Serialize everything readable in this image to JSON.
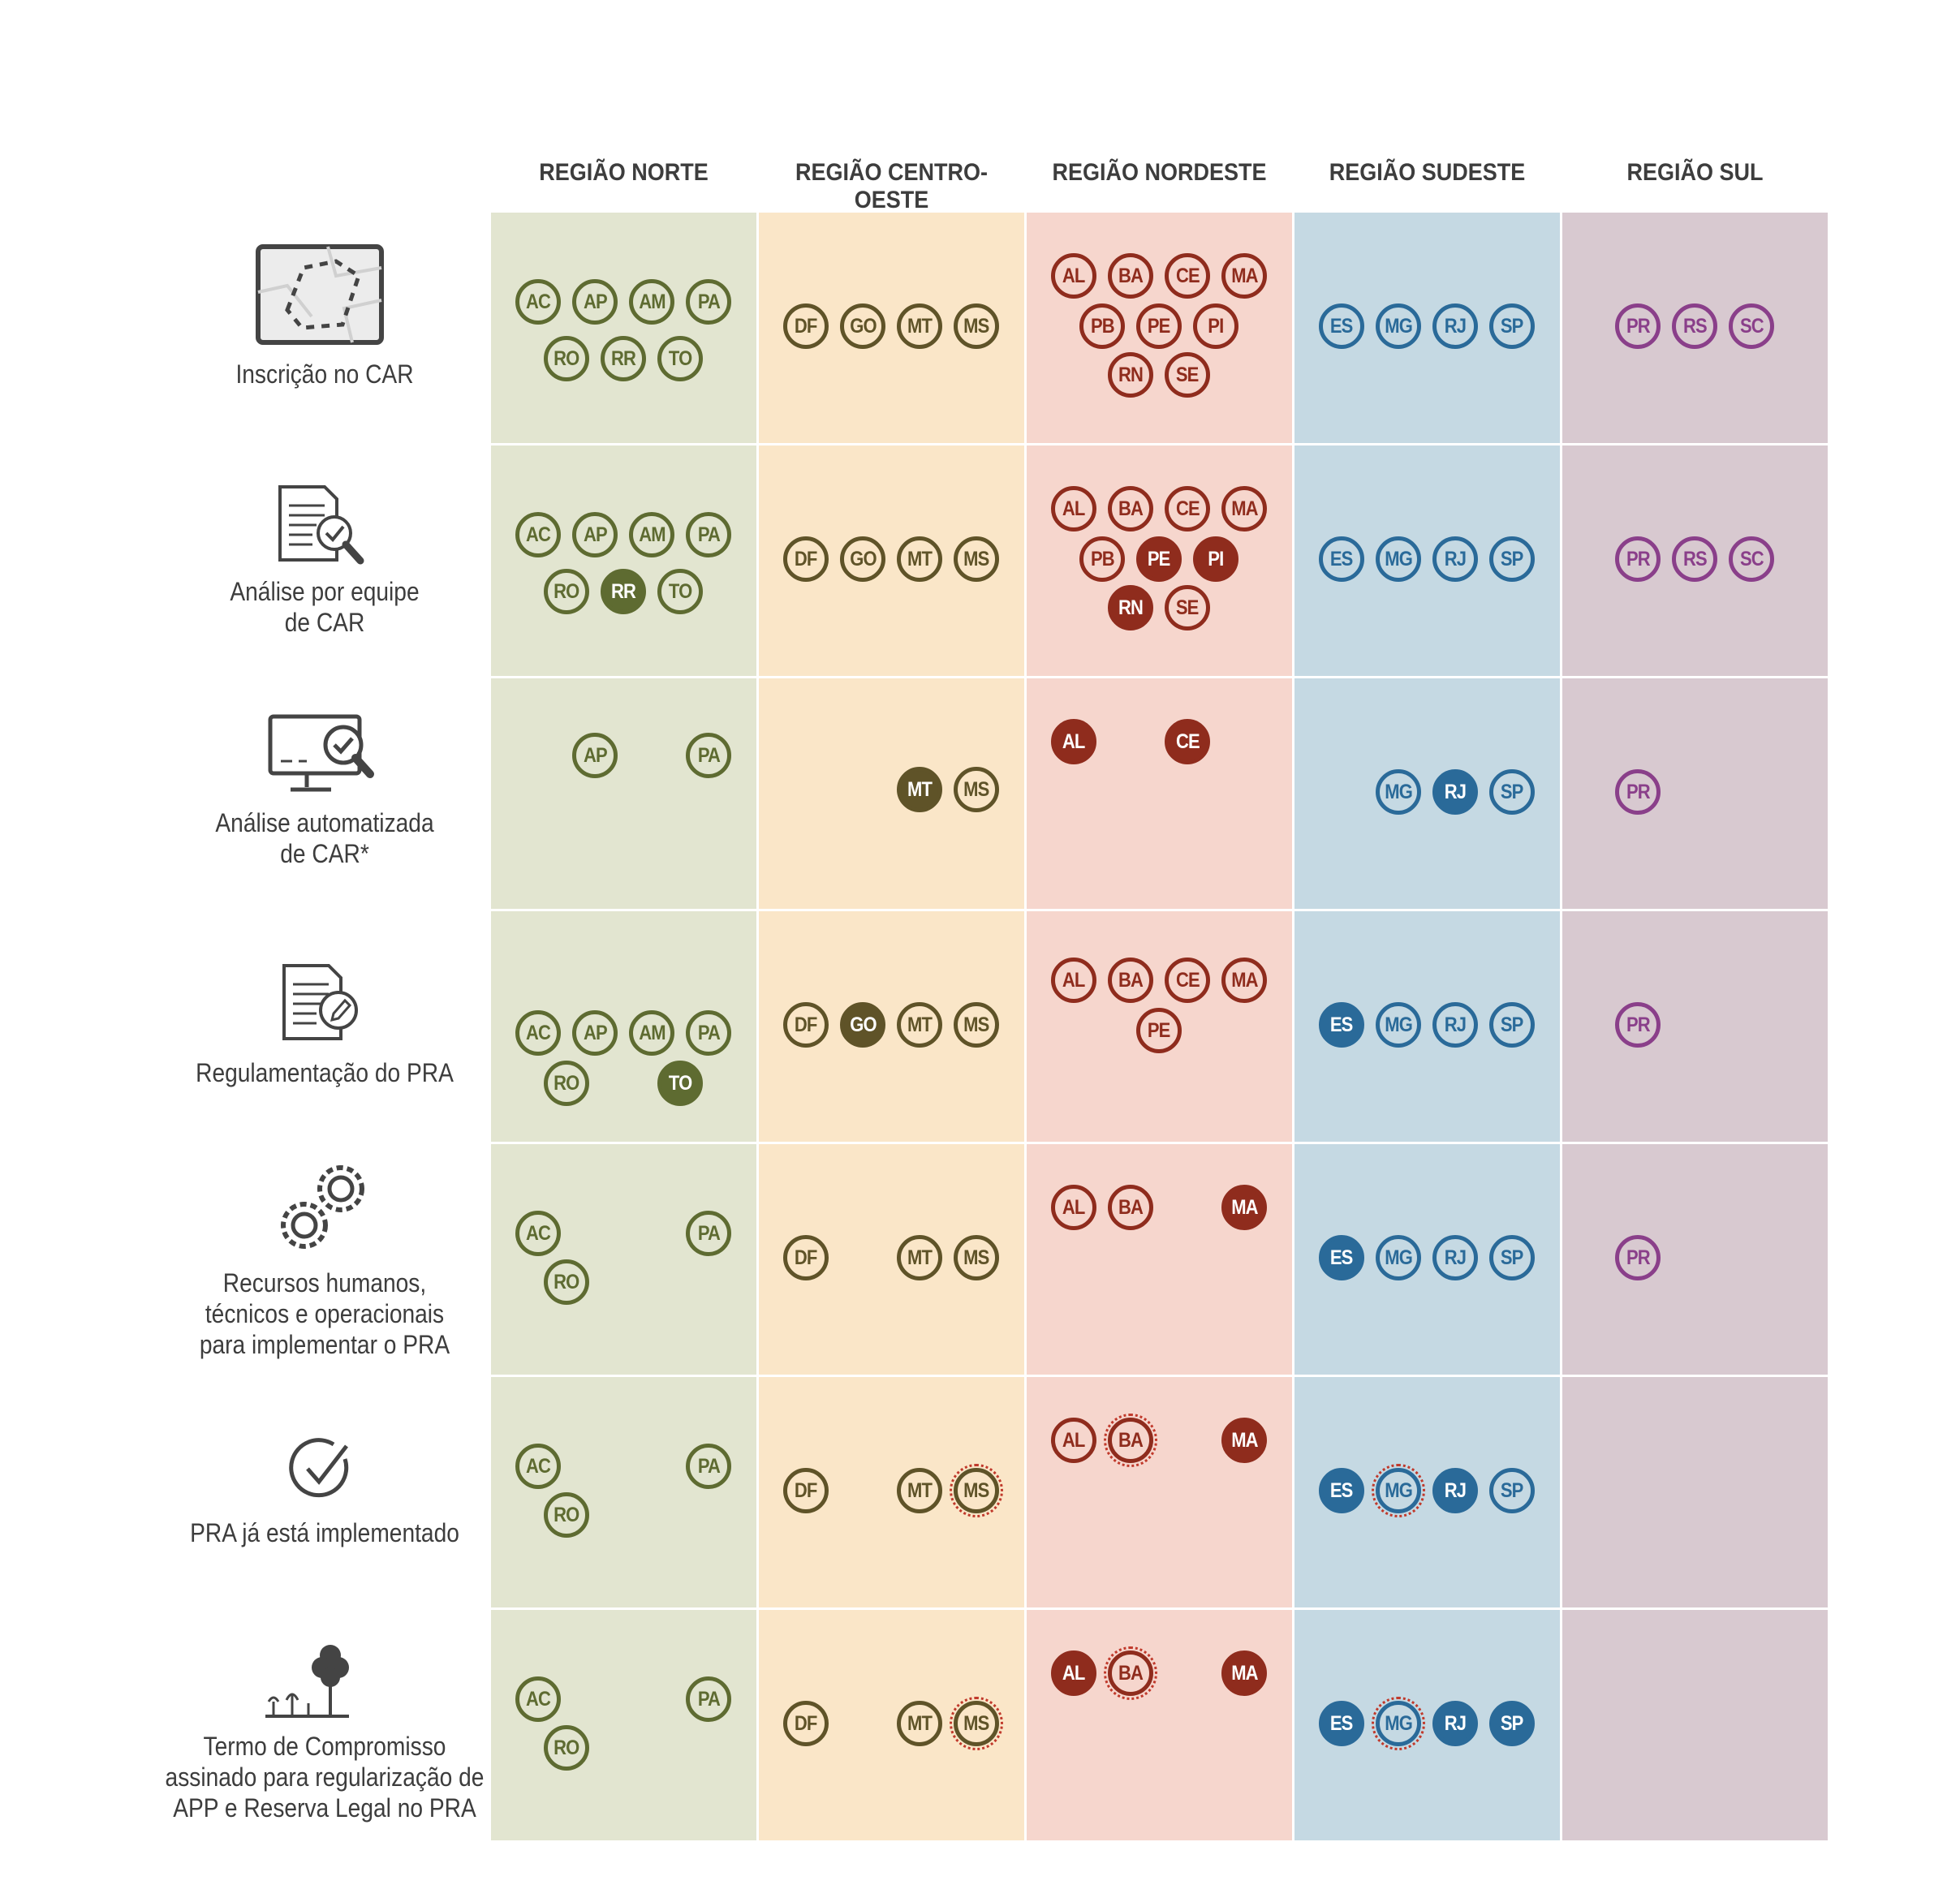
{
  "colors": {
    "norte": {
      "bg": "#e2e5d0",
      "fg": "#5e6b31"
    },
    "centro": {
      "bg": "#fae6c8",
      "fg": "#5f5328"
    },
    "nordeste": {
      "bg": "#f6d6cd",
      "fg": "#8f2c1d"
    },
    "sudeste": {
      "bg": "#c5d9e3",
      "fg": "#2a6a99"
    },
    "sul": {
      "bg": "#d8c9d0",
      "fg": "#8a3f8a"
    }
  },
  "headers": [
    "REGIÃO NORTE",
    "REGIÃO CENTRO-OESTE",
    "REGIÃO NORDESTE",
    "REGIÃO SUDESTE",
    "REGIÃO SUL"
  ],
  "rows": [
    {
      "label": [
        "Inscrição no CAR"
      ],
      "icon": "map-area-icon",
      "regions": {
        "norte": [
          {
            "uf": "AC"
          },
          {
            "uf": "AP"
          },
          {
            "uf": "AM"
          },
          {
            "uf": "PA"
          },
          {
            "uf": "RO"
          },
          {
            "uf": "RR"
          },
          {
            "uf": "TO"
          }
        ],
        "centro": [
          {
            "uf": "DF"
          },
          {
            "uf": "GO"
          },
          {
            "uf": "MT"
          },
          {
            "uf": "MS"
          }
        ],
        "nordeste": [
          {
            "uf": "AL"
          },
          {
            "uf": "BA"
          },
          {
            "uf": "CE"
          },
          {
            "uf": "MA"
          },
          {
            "uf": "PB"
          },
          {
            "uf": "PE"
          },
          {
            "uf": "PI"
          },
          {
            "uf": "RN"
          },
          {
            "uf": "SE"
          }
        ],
        "sudeste": [
          {
            "uf": "ES"
          },
          {
            "uf": "MG"
          },
          {
            "uf": "RJ"
          },
          {
            "uf": "SP"
          }
        ],
        "sul": [
          {
            "uf": "PR"
          },
          {
            "uf": "RS"
          },
          {
            "uf": "SC"
          }
        ]
      }
    },
    {
      "label": [
        "Análise por equipe",
        "de CAR"
      ],
      "icon": "document-check-icon",
      "regions": {
        "norte": [
          {
            "uf": "AC"
          },
          {
            "uf": "AP"
          },
          {
            "uf": "AM"
          },
          {
            "uf": "PA"
          },
          {
            "uf": "RO"
          },
          {
            "uf": "RR",
            "filled": true
          },
          {
            "uf": "TO"
          }
        ],
        "centro": [
          {
            "uf": "DF"
          },
          {
            "uf": "GO"
          },
          {
            "uf": "MT"
          },
          {
            "uf": "MS"
          }
        ],
        "nordeste": [
          {
            "uf": "AL"
          },
          {
            "uf": "BA"
          },
          {
            "uf": "CE"
          },
          {
            "uf": "MA"
          },
          {
            "uf": "PB"
          },
          {
            "uf": "PE",
            "filled": true
          },
          {
            "uf": "PI",
            "filled": true
          },
          {
            "uf": "RN",
            "filled": true
          },
          {
            "uf": "SE"
          }
        ],
        "sudeste": [
          {
            "uf": "ES"
          },
          {
            "uf": "MG"
          },
          {
            "uf": "RJ"
          },
          {
            "uf": "SP"
          }
        ],
        "sul": [
          {
            "uf": "PR"
          },
          {
            "uf": "RS"
          },
          {
            "uf": "SC"
          }
        ]
      }
    },
    {
      "label": [
        "Análise automatizada",
        "de CAR*"
      ],
      "icon": "computer-check-icon",
      "regions": {
        "norte": [
          {
            "uf": "AP"
          },
          {
            "uf": "PA"
          }
        ],
        "centro": [
          {
            "uf": "MT",
            "filled": true
          },
          {
            "uf": "MS"
          }
        ],
        "nordeste": [
          {
            "uf": "AL",
            "filled": true
          },
          {
            "uf": "CE",
            "filled": true
          }
        ],
        "sudeste": [
          {
            "uf": "MG"
          },
          {
            "uf": "RJ",
            "filled": true
          },
          {
            "uf": "SP"
          }
        ],
        "sul": [
          {
            "uf": "PR"
          }
        ]
      }
    },
    {
      "label": [
        "Regulamentação do PRA"
      ],
      "icon": "document-edit-icon",
      "regions": {
        "norte": [
          {
            "uf": "AC"
          },
          {
            "uf": "AP"
          },
          {
            "uf": "AM"
          },
          {
            "uf": "PA"
          },
          {
            "uf": "RO"
          },
          {
            "uf": "TO",
            "filled": true
          }
        ],
        "centro": [
          {
            "uf": "DF"
          },
          {
            "uf": "GO",
            "filled": true
          },
          {
            "uf": "MT"
          },
          {
            "uf": "MS"
          }
        ],
        "nordeste": [
          {
            "uf": "AL"
          },
          {
            "uf": "BA"
          },
          {
            "uf": "CE"
          },
          {
            "uf": "MA"
          },
          {
            "uf": "PE"
          }
        ],
        "sudeste": [
          {
            "uf": "ES",
            "filled": true
          },
          {
            "uf": "MG"
          },
          {
            "uf": "RJ"
          },
          {
            "uf": "SP"
          }
        ],
        "sul": [
          {
            "uf": "PR"
          }
        ]
      }
    },
    {
      "label": [
        "Recursos humanos,",
        "técnicos e operacionais",
        "para implementar o PRA"
      ],
      "icon": "gears-icon",
      "regions": {
        "norte": [
          {
            "uf": "AC"
          },
          {
            "uf": "PA"
          },
          {
            "uf": "RO"
          }
        ],
        "centro": [
          {
            "uf": "DF"
          },
          {
            "uf": "MT"
          },
          {
            "uf": "MS"
          }
        ],
        "nordeste": [
          {
            "uf": "AL"
          },
          {
            "uf": "BA"
          },
          {
            "uf": "MA",
            "filled": true
          }
        ],
        "sudeste": [
          {
            "uf": "ES",
            "filled": true
          },
          {
            "uf": "MG"
          },
          {
            "uf": "RJ"
          },
          {
            "uf": "SP"
          }
        ],
        "sul": [
          {
            "uf": "PR"
          }
        ]
      }
    },
    {
      "label": [
        "PRA já está implementado"
      ],
      "icon": "check-circle-icon",
      "regions": {
        "norte": [
          {
            "uf": "AC"
          },
          {
            "uf": "PA"
          },
          {
            "uf": "RO"
          }
        ],
        "centro": [
          {
            "uf": "DF"
          },
          {
            "uf": "MT"
          },
          {
            "uf": "MS",
            "dotted": true
          }
        ],
        "nordeste": [
          {
            "uf": "AL"
          },
          {
            "uf": "BA",
            "dotted": true
          },
          {
            "uf": "MA",
            "filled": true
          }
        ],
        "sudeste": [
          {
            "uf": "ES",
            "filled": true
          },
          {
            "uf": "MG",
            "dotted": true
          },
          {
            "uf": "RJ",
            "filled": true
          },
          {
            "uf": "SP"
          }
        ],
        "sul": []
      }
    },
    {
      "label": [
        "Termo de Compromisso",
        "assinado para regularização de",
        "APP e Reserva Legal no PRA"
      ],
      "icon": "trees-icon",
      "regions": {
        "norte": [
          {
            "uf": "AC"
          },
          {
            "uf": "PA"
          },
          {
            "uf": "RO"
          }
        ],
        "centro": [
          {
            "uf": "DF"
          },
          {
            "uf": "MT"
          },
          {
            "uf": "MS",
            "dotted": true
          }
        ],
        "nordeste": [
          {
            "uf": "AL",
            "filled": true
          },
          {
            "uf": "BA",
            "dotted": true
          },
          {
            "uf": "MA",
            "filled": true
          }
        ],
        "sudeste": [
          {
            "uf": "ES",
            "filled": true
          },
          {
            "uf": "MG",
            "dotted": true
          },
          {
            "uf": "RJ",
            "filled": true
          },
          {
            "uf": "SP",
            "filled": true
          }
        ],
        "sul": []
      }
    }
  ]
}
